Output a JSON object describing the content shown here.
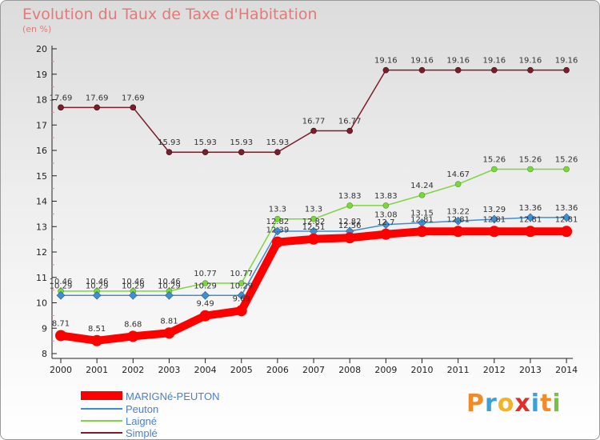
{
  "chart_data": {
    "type": "line",
    "title": "Evolution du Taux de Taxe d'Habitation",
    "ylabel": "(en %)",
    "xlabel": "",
    "ylim": [
      8,
      20
    ],
    "yticks": [
      8,
      9,
      10,
      11,
      12,
      13,
      14,
      15,
      16,
      17,
      18,
      19,
      20
    ],
    "categories": [
      "2000",
      "2001",
      "2002",
      "2003",
      "2004",
      "2005",
      "2006",
      "2007",
      "2008",
      "2009",
      "2010",
      "2011",
      "2012",
      "2013",
      "2014"
    ],
    "grid": false,
    "legend_position": "bottom-left",
    "series": [
      {
        "name": "MARIGNé-PEUTON",
        "color": "#ff0000",
        "values": [
          8.71,
          8.51,
          8.68,
          8.81,
          9.49,
          9.69,
          12.39,
          12.51,
          12.56,
          12.7,
          12.81,
          12.81,
          12.81,
          12.81,
          12.81
        ]
      },
      {
        "name": "Peuton",
        "color": "#3d8fd1",
        "values": [
          10.29,
          10.29,
          10.29,
          10.29,
          10.29,
          10.29,
          12.82,
          12.82,
          12.82,
          13.08,
          13.15,
          13.22,
          13.29,
          13.36,
          13.36
        ]
      },
      {
        "name": "Laigné",
        "color": "#7dd63f",
        "values": [
          10.46,
          10.46,
          10.46,
          10.46,
          10.77,
          10.77,
          13.3,
          13.3,
          13.83,
          13.83,
          14.24,
          14.67,
          15.26,
          15.26,
          15.26
        ]
      },
      {
        "name": "Simplé",
        "color": "#7a1f2a",
        "values": [
          17.69,
          17.69,
          17.69,
          15.93,
          15.93,
          15.93,
          15.93,
          16.77,
          16.77,
          19.16,
          19.16,
          19.16,
          19.16,
          19.16,
          19.16
        ]
      }
    ]
  },
  "logo": {
    "text": "Proxiti"
  }
}
